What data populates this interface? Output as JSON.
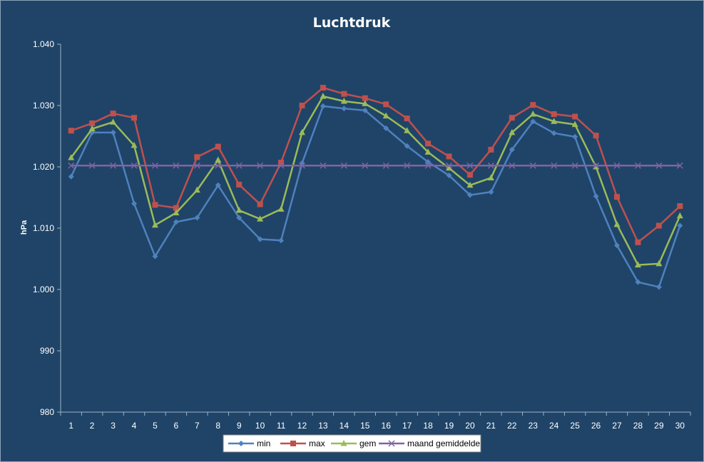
{
  "chart_data": {
    "type": "line",
    "title": "Luchtdruk",
    "xlabel": "",
    "ylabel": "hPa",
    "x": [
      1,
      2,
      3,
      4,
      5,
      6,
      7,
      8,
      9,
      10,
      11,
      12,
      13,
      14,
      15,
      16,
      17,
      18,
      19,
      20,
      21,
      22,
      23,
      24,
      25,
      26,
      27,
      28,
      29,
      30
    ],
    "ylim": [
      980,
      1040
    ],
    "yticks": [
      980,
      990,
      1000,
      1010,
      1020,
      1030,
      1040
    ],
    "ytick_labels": [
      "980",
      "990",
      "1.000",
      "1.010",
      "1.020",
      "1.030",
      "1.040"
    ],
    "grid": false,
    "legend_position": "bottom",
    "series": [
      {
        "name": "min",
        "color": "#4f81bd",
        "marker": "diamond",
        "values": [
          1018.4,
          1025.6,
          1025.6,
          1014.0,
          1005.4,
          1011.0,
          1011.7,
          1017.0,
          1011.7,
          1008.2,
          1008.0,
          1020.6,
          1029.9,
          1029.5,
          1029.2,
          1026.3,
          1023.4,
          1020.8,
          1018.6,
          1015.4,
          1015.9,
          1022.8,
          1027.4,
          1025.5,
          1024.9,
          1015.2,
          1007.2,
          1001.2,
          1000.4,
          1010.4
        ]
      },
      {
        "name": "max",
        "color": "#c0504d",
        "marker": "square",
        "values": [
          1025.9,
          1027.1,
          1028.7,
          1028.0,
          1013.8,
          1013.3,
          1021.6,
          1023.3,
          1017.1,
          1013.9,
          1020.7,
          1030.0,
          1032.9,
          1031.9,
          1031.2,
          1030.2,
          1027.9,
          1023.8,
          1021.7,
          1018.7,
          1022.8,
          1028.0,
          1030.1,
          1028.6,
          1028.2,
          1025.1,
          1015.1,
          1007.7,
          1010.4,
          1013.6
        ]
      },
      {
        "name": "gem",
        "color": "#9bbb59",
        "marker": "triangle",
        "values": [
          1021.5,
          1026.2,
          1027.3,
          1023.5,
          1010.5,
          1012.5,
          1016.2,
          1021.1,
          1012.9,
          1011.5,
          1013.1,
          1025.6,
          1031.5,
          1030.7,
          1030.3,
          1028.3,
          1025.9,
          1022.4,
          1019.8,
          1017.0,
          1018.2,
          1025.6,
          1028.6,
          1027.4,
          1026.9,
          1020.0,
          1010.6,
          1004.0,
          1004.2,
          1012.0
        ]
      },
      {
        "name": "maand gemiddelde",
        "color": "#8064a2",
        "marker": "x",
        "values": [
          1020.2,
          1020.2,
          1020.2,
          1020.2,
          1020.2,
          1020.2,
          1020.2,
          1020.2,
          1020.2,
          1020.2,
          1020.2,
          1020.2,
          1020.2,
          1020.2,
          1020.2,
          1020.2,
          1020.2,
          1020.2,
          1020.2,
          1020.2,
          1020.2,
          1020.2,
          1020.2,
          1020.2,
          1020.2,
          1020.2,
          1020.2,
          1020.2,
          1020.2,
          1020.2
        ]
      }
    ]
  }
}
